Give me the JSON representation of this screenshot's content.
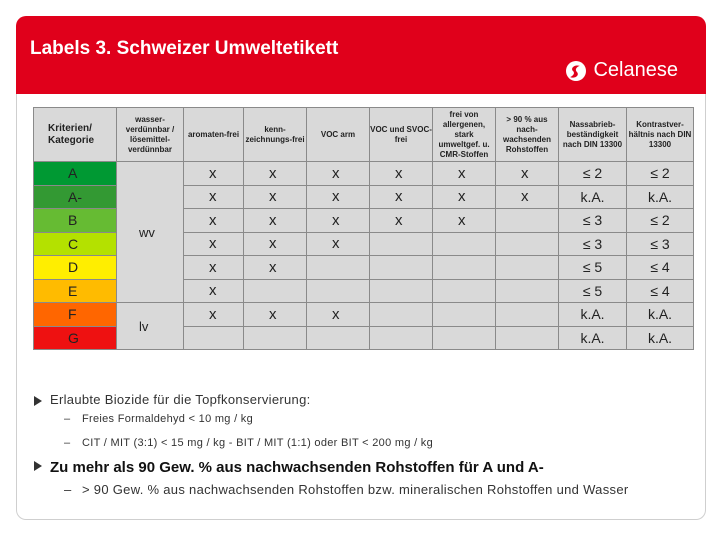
{
  "slide": {
    "title": "Labels 3. Schweizer Umweltetikett",
    "logo_text": "Celanese"
  },
  "table": {
    "headers": [
      "Kriterien/ Kategorie",
      "wasser-verdünnbar / lösemittel-verdünnbar",
      "aromaten-frei",
      "kenn-zeichnungs-frei",
      "VOC arm",
      "VOC und SVOC-frei",
      "frei von allergenen, stark umweltgef. u. CMR-Stoffen",
      "> 90 % aus nach-wachsenden Rohstoffen",
      "Nassabrieb-beständigkeit nach DIN 13300",
      "Kontrastver-hältnis nach DIN 13300"
    ],
    "rows": [
      {
        "category": "A",
        "color": "#009933",
        "cells": [
          "x",
          "x",
          "x",
          "x",
          "x",
          "x",
          "≤ 2",
          "≤ 2"
        ]
      },
      {
        "category": "A-",
        "color": "#339933",
        "cells": [
          "x",
          "x",
          "x",
          "x",
          "x",
          "x",
          "k.A.",
          "k.A."
        ]
      },
      {
        "category": "B",
        "color": "#66bb33",
        "cells": [
          "x",
          "x",
          "x",
          "x",
          "x",
          "",
          "≤ 3",
          "≤ 2"
        ]
      },
      {
        "category": "C",
        "color": "#b4e100",
        "cells": [
          "x",
          "x",
          "x",
          "",
          "",
          "",
          "≤ 3",
          "≤ 3"
        ]
      },
      {
        "category": "D",
        "color": "#ffee00",
        "cells": [
          "x",
          "x",
          "",
          "",
          "",
          "",
          "≤ 5",
          "≤ 4"
        ]
      },
      {
        "category": "E",
        "color": "#ffbb00",
        "cells": [
          "x",
          "",
          "",
          "",
          "",
          "",
          "≤ 5",
          "≤ 4"
        ]
      },
      {
        "category": "F",
        "color": "#ff6600",
        "cells": [
          "x",
          "x",
          "x",
          "",
          "",
          "",
          "k.A.",
          "k.A."
        ]
      },
      {
        "category": "G",
        "color": "#ee1111",
        "cells": [
          "",
          "",
          "",
          "",
          "",
          "",
          "k.A.",
          "k.A."
        ]
      }
    ],
    "group_wv": "wv",
    "group_lv": "lv"
  },
  "bullets": {
    "b1": "Erlaubte Biozide für die Topfkonservierung:",
    "b1_sub1": "Freies Formaldehyd < 10 mg / kg",
    "b1_sub2": "CIT / MIT (3:1) < 15 mg / kg - BIT / MIT (1:1) oder BIT < 200 mg / kg",
    "b2": "Zu mehr als 90 Gew. % aus nachwachsenden Rohstoffen für A und A-",
    "b2_sub1": "> 90 Gew. % aus nachwachsenden Rohstoffen bzw. mineralischen Rohstoffen und Wasser",
    "dash": "–"
  }
}
